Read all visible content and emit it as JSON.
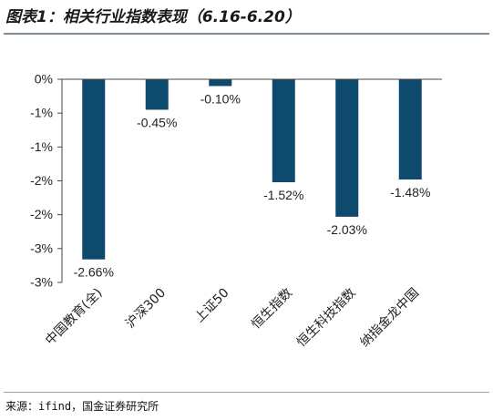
{
  "title": "图表1：相关行业指数表现（6.16-6.20）",
  "source": "来源：ifind，国金证券研究所",
  "colors": {
    "bar": "#0e4a6e",
    "axis": "#444444",
    "text": "#222222"
  },
  "chart_data": {
    "type": "bar",
    "categories": [
      "中国教育(全)",
      "沪深300",
      "上证50",
      "恒生指数",
      "恒生科技指数",
      "纳指金龙中国"
    ],
    "values": [
      -2.66,
      -0.45,
      -0.1,
      -1.52,
      -2.03,
      -1.48
    ],
    "data_labels": [
      "-2.66%",
      "-0.45%",
      "-0.10%",
      "-1.52%",
      "-2.03%",
      "-1.48%"
    ],
    "ylim": [
      -3.0,
      0
    ],
    "yticks": [
      0,
      -0.5,
      -1.0,
      -1.5,
      -2.0,
      -2.5,
      -3.0
    ],
    "ytick_labels": [
      "0%",
      "-1%",
      "-1%",
      "-2%",
      "-2%",
      "-3%",
      "-3%"
    ],
    "grid": false,
    "legend": "none",
    "xlabel": "",
    "ylabel": ""
  }
}
